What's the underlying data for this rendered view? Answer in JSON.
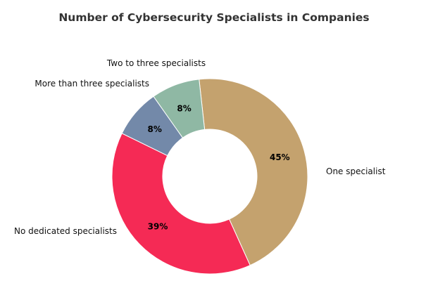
{
  "chart_data": {
    "type": "pie",
    "variant": "donut",
    "title": "Number of Cybersecurity Specialists in Companies",
    "slices": [
      {
        "label": "One specialist",
        "value": 45,
        "pct_label": "45%",
        "color": "#C4A26E"
      },
      {
        "label": "No dedicated specialists",
        "value": 39,
        "pct_label": "39%",
        "color": "#F52A55"
      },
      {
        "label": "More than three specialists",
        "value": 8,
        "pct_label": "8%",
        "color": "#7389A9"
      },
      {
        "label": "Two to three specialists",
        "value": 8,
        "pct_label": "8%",
        "color": "#8FB8A4"
      }
    ]
  }
}
